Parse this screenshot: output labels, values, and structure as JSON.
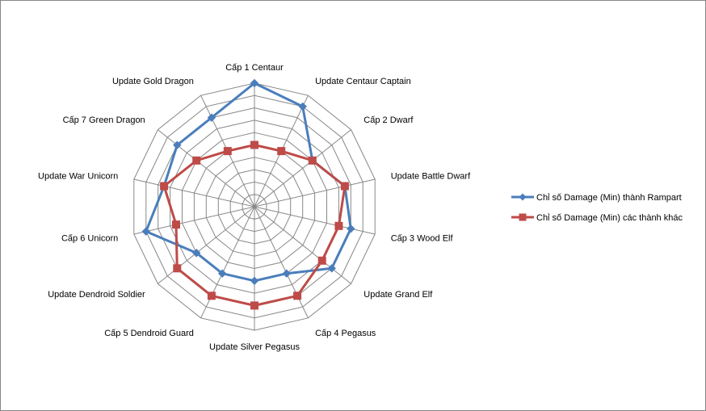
{
  "chart_data": {
    "type": "radar",
    "categories": [
      "Cấp 1 Centaur",
      "Update Centaur Captain",
      "Cấp 2 Dwarf",
      "Update Battle Dwarf",
      "Cấp 3 Wood Elf",
      "Update Grand Elf",
      "Cấp 4 Pegasus",
      "Update Silver Pegasus",
      "Cấp 5 Dendroid Guard",
      "Update Dendroid Soldier",
      "Cấp 6 Unicorn",
      "Update War Unicorn",
      "Cấp 7 Green  Dragon",
      "Update Gold Dragon"
    ],
    "rmax": 10,
    "rings": 10,
    "grid": true,
    "legend": "right",
    "series": [
      {
        "name": "Chỉ số Damage (Min) thành Rampart",
        "color": "#4a7ebb",
        "marker": "diamond",
        "values": [
          10,
          9,
          6,
          7.5,
          8,
          8,
          6,
          6,
          6,
          6,
          9,
          7.5,
          8,
          8
        ]
      },
      {
        "name": "Chỉ số Damage (Min) các thành khác",
        "color": "#be4b48",
        "marker": "square",
        "values": [
          5,
          5,
          6,
          7.5,
          7,
          7,
          8,
          8,
          8,
          8,
          6.5,
          7.5,
          6,
          5
        ]
      }
    ]
  }
}
